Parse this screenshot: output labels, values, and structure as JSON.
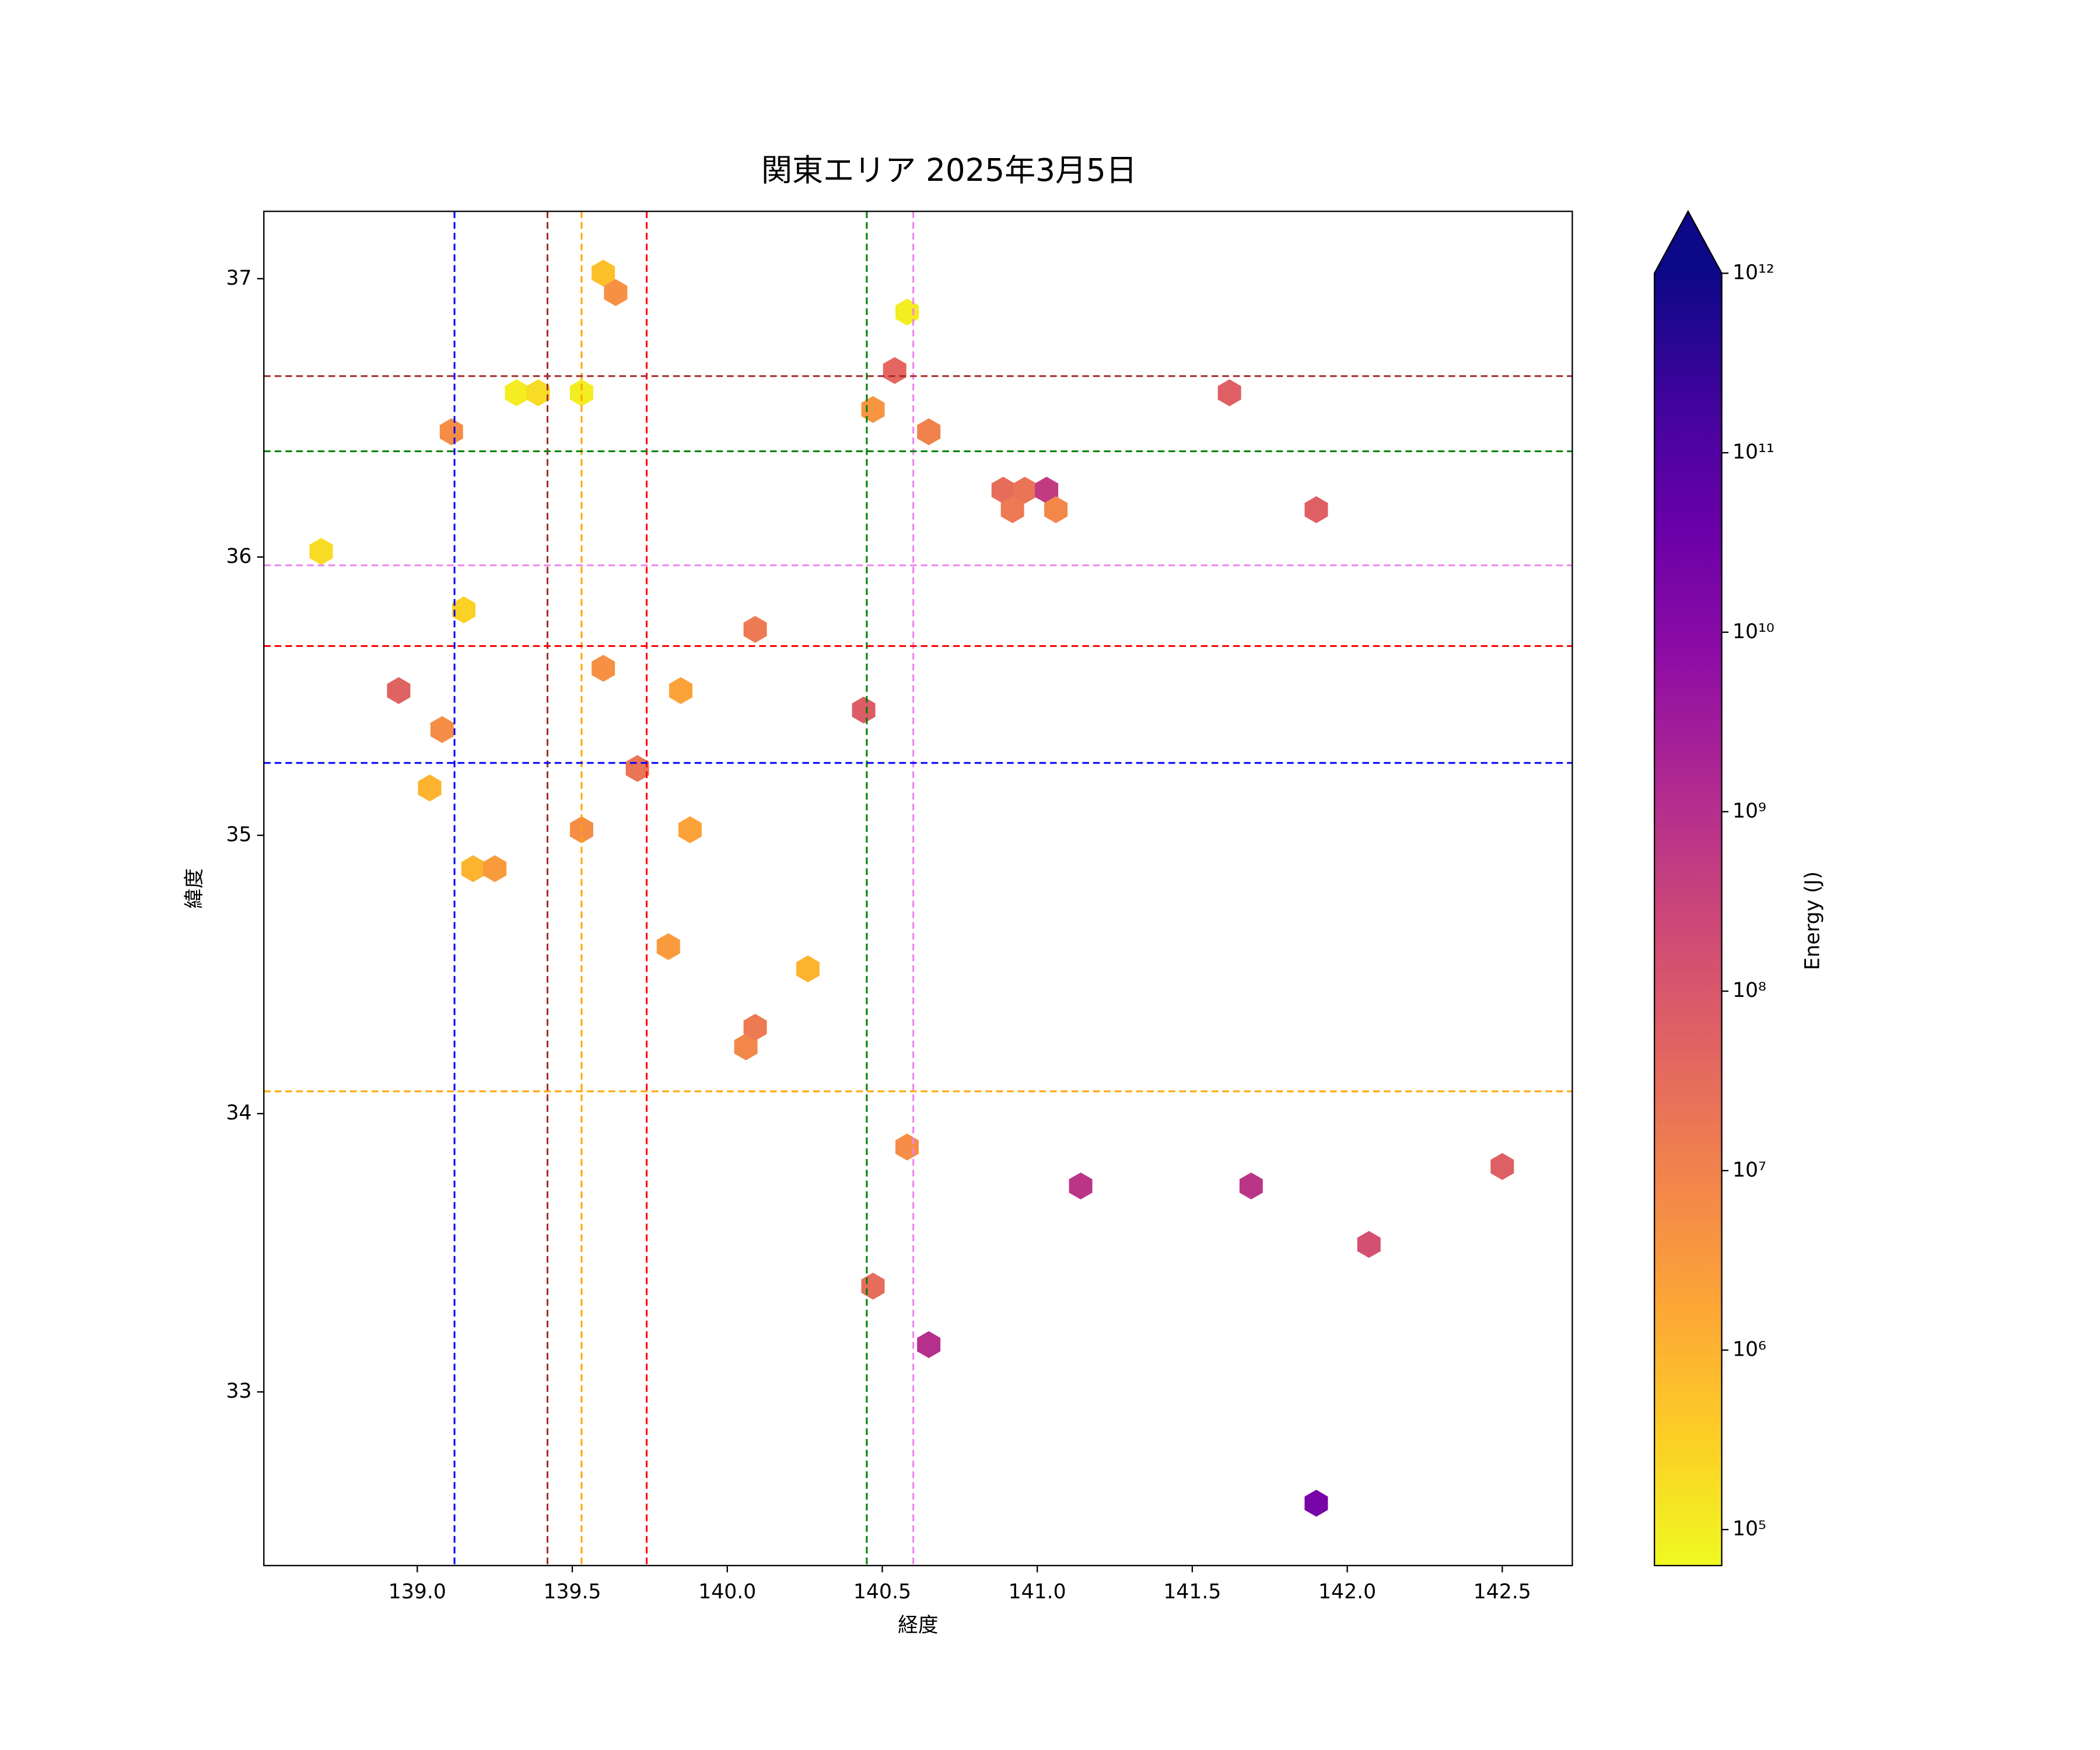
{
  "chart_data": {
    "type": "hexbin",
    "title": "関東エリア 2025年3月5日",
    "xlabel": "経度",
    "ylabel": "緯度",
    "x": [
      138.69,
      138.94,
      139.08,
      139.04,
      139.11,
      139.15,
      139.18,
      139.25,
      139.32,
      139.39,
      139.53,
      139.6,
      139.64,
      139.6,
      139.53,
      139.71,
      139.85,
      139.88,
      139.81,
      140.09,
      140.06,
      140.09,
      140.26,
      140.58,
      140.54,
      140.47,
      140.65,
      140.44,
      140.89,
      140.96,
      141.03,
      140.92,
      141.06,
      141.62,
      141.9,
      140.58,
      140.47,
      140.65,
      141.14,
      141.69,
      142.07,
      142.5,
      141.9
    ],
    "y": [
      36.02,
      35.52,
      35.38,
      35.17,
      36.45,
      35.81,
      34.88,
      34.88,
      36.59,
      36.59,
      36.59,
      37.02,
      36.95,
      35.6,
      35.02,
      35.24,
      35.52,
      35.02,
      34.6,
      35.74,
      34.24,
      34.31,
      34.52,
      36.88,
      36.67,
      36.53,
      36.45,
      35.45,
      36.24,
      36.24,
      36.24,
      36.17,
      36.17,
      36.59,
      36.17,
      33.88,
      33.38,
      33.17,
      33.74,
      33.74,
      33.53,
      33.81,
      32.6
    ],
    "values": [
      200000,
      50000000,
      6000000,
      1000000,
      6000000,
      300000,
      1000000,
      3000000,
      100000,
      200000,
      100000,
      600000,
      5000000,
      5000000,
      6000000,
      20000000,
      2000000,
      2000000,
      3000000,
      15000000,
      8000000,
      15000000,
      1000000,
      100000,
      40000000,
      4000000,
      10000000,
      70000000,
      30000000,
      20000000,
      500000000,
      15000000,
      8000000,
      60000000,
      60000000,
      6000000,
      30000000,
      1000000000,
      700000000,
      700000000,
      150000000,
      60000000,
      20000000000
    ],
    "xlim": [
      138.505,
      142.726
    ],
    "ylim": [
      32.376,
      37.242
    ],
    "xticks": [
      {
        "value": 139,
        "label": "139.0"
      },
      139.5,
      {
        "value": 140,
        "label": "140.0"
      },
      140.5,
      {
        "value": 141,
        "label": "141.0"
      },
      141.5,
      {
        "value": 142,
        "label": "142.0"
      },
      142.5
    ],
    "yticks": [
      33,
      34,
      35,
      36,
      37
    ],
    "colorbar": {
      "label": "Energy (J)",
      "cmap": "plasma_r",
      "log": true,
      "extend": "max",
      "clim": [
        63000,
        1000000000000
      ],
      "ticks": [
        {
          "value": 100000,
          "label": "10⁵"
        },
        {
          "value": 1000000,
          "label": "10⁶"
        },
        {
          "value": 10000000,
          "label": "10⁷"
        },
        {
          "value": 100000000,
          "label": "10⁸"
        },
        {
          "value": 1000000000,
          "label": "10⁹"
        },
        {
          "value": 10000000000,
          "label": "10¹⁰"
        },
        {
          "value": 100000000000,
          "label": "10¹¹"
        },
        {
          "value": 1000000000000,
          "label": "10¹²"
        }
      ]
    },
    "vlines": [
      {
        "x": 139.12,
        "color": "blue"
      },
      {
        "x": 139.42,
        "color": "brown"
      },
      {
        "x": 139.53,
        "color": "orange"
      },
      {
        "x": 139.74,
        "color": "red"
      },
      {
        "x": 140.45,
        "color": "green"
      },
      {
        "x": 140.6,
        "color": "violet"
      }
    ],
    "hlines": [
      {
        "y": 36.65,
        "color": "brown"
      },
      {
        "y": 36.38,
        "color": "green"
      },
      {
        "y": 35.97,
        "color": "violet"
      },
      {
        "y": 35.68,
        "color": "red"
      },
      {
        "y": 35.26,
        "color": "blue"
      },
      {
        "y": 34.08,
        "color": "orange"
      }
    ]
  }
}
